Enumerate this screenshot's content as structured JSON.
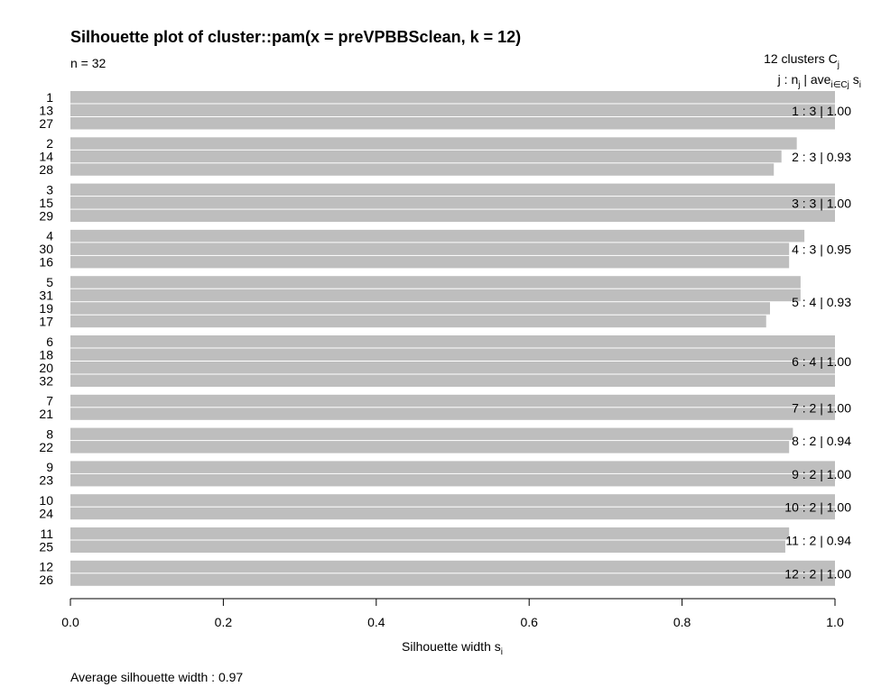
{
  "chart_data": {
    "type": "bar",
    "orientation": "horizontal",
    "title": "Silhouette plot of cluster::pam(x = preVPBBSclean, k = 12)",
    "n_label": "n = 32",
    "header": {
      "clusters_line": "12  clusters  C",
      "clusters_sub": "j",
      "cols": [
        "j :  n",
        "j",
        " | ave",
        "i∈Cj",
        "  s",
        "i"
      ]
    },
    "xlim": [
      0,
      1
    ],
    "xticks": [
      0.0,
      0.2,
      0.4,
      0.6,
      0.8,
      1.0
    ],
    "xtick_labels": [
      "0.0",
      "0.2",
      "0.4",
      "0.6",
      "0.8",
      "1.0"
    ],
    "xlabel": "Silhouette width s",
    "xlabel_sub": "i",
    "footer": "Average silhouette width :  0.97",
    "bar_color": "#bebebe",
    "clusters": [
      {
        "j": "1",
        "n": "3",
        "avg": "1.00",
        "ids": [
          "1",
          "13",
          "27"
        ],
        "widths": [
          1.0,
          1.0,
          1.0
        ]
      },
      {
        "j": "2",
        "n": "3",
        "avg": "0.93",
        "ids": [
          "2",
          "14",
          "28"
        ],
        "widths": [
          0.95,
          0.93,
          0.92
        ]
      },
      {
        "j": "3",
        "n": "3",
        "avg": "1.00",
        "ids": [
          "3",
          "15",
          "29"
        ],
        "widths": [
          1.0,
          1.0,
          1.0
        ]
      },
      {
        "j": "4",
        "n": "3",
        "avg": "0.95",
        "ids": [
          "4",
          "30",
          "16"
        ],
        "widths": [
          0.96,
          0.94,
          0.94
        ]
      },
      {
        "j": "5",
        "n": "4",
        "avg": "0.93",
        "ids": [
          "5",
          "31",
          "19",
          "17"
        ],
        "widths": [
          0.955,
          0.955,
          0.915,
          0.91
        ]
      },
      {
        "j": "6",
        "n": "4",
        "avg": "1.00",
        "ids": [
          "6",
          "18",
          "20",
          "32"
        ],
        "widths": [
          1.0,
          1.0,
          1.0,
          1.0
        ]
      },
      {
        "j": "7",
        "n": "2",
        "avg": "1.00",
        "ids": [
          "7",
          "21"
        ],
        "widths": [
          1.0,
          1.0
        ]
      },
      {
        "j": "8",
        "n": "2",
        "avg": "0.94",
        "ids": [
          "8",
          "22"
        ],
        "widths": [
          0.945,
          0.94
        ]
      },
      {
        "j": "9",
        "n": "2",
        "avg": "1.00",
        "ids": [
          "9",
          "23"
        ],
        "widths": [
          1.0,
          1.0
        ]
      },
      {
        "j": "10",
        "n": "2",
        "avg": "1.00",
        "ids": [
          "10",
          "24"
        ],
        "widths": [
          1.0,
          1.0
        ]
      },
      {
        "j": "11",
        "n": "2",
        "avg": "0.94",
        "ids": [
          "11",
          "25"
        ],
        "widths": [
          0.94,
          0.935
        ]
      },
      {
        "j": "12",
        "n": "2",
        "avg": "1.00",
        "ids": [
          "12",
          "26"
        ],
        "widths": [
          1.0,
          1.0
        ]
      }
    ]
  }
}
